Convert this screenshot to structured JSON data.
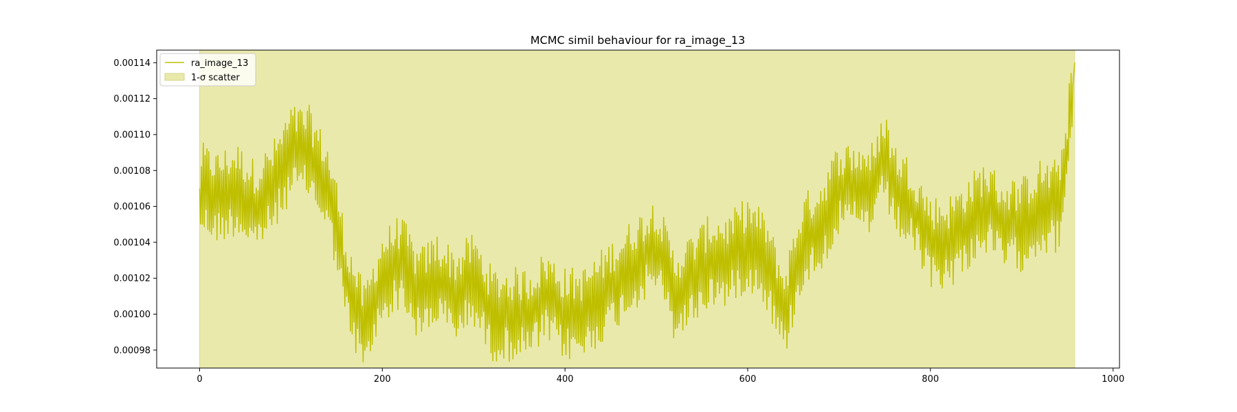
{
  "chart_data": {
    "type": "line",
    "title": "MCMC simil behaviour for ra_image_13",
    "xlabel": "",
    "ylabel": "",
    "xlim": [
      -47,
      1007
    ],
    "ylim": [
      0.00097,
      0.001147
    ],
    "x_ticks": [
      0,
      200,
      400,
      600,
      800,
      1000
    ],
    "x_tick_labels": [
      "0",
      "200",
      "400",
      "600",
      "800",
      "1000"
    ],
    "y_ticks": [
      0.00098,
      0.001,
      0.00102,
      0.00104,
      0.00106,
      0.00108,
      0.0011,
      0.00112,
      0.00114
    ],
    "y_tick_labels": [
      "0.00098",
      "0.00100",
      "0.00102",
      "0.00104",
      "0.00106",
      "0.00108",
      "0.00110",
      "0.00112",
      "0.00114"
    ],
    "grid": false,
    "legend_position": "upper-left",
    "colors": {
      "line": "#bfbf00",
      "band": "#e9e9ab"
    },
    "series": [
      {
        "name": "ra_image_13",
        "kind": "line",
        "x": [
          0,
          20,
          40,
          60,
          80,
          100,
          120,
          140,
          150,
          160,
          180,
          200,
          220,
          240,
          260,
          280,
          300,
          320,
          340,
          360,
          380,
          400,
          420,
          440,
          460,
          480,
          500,
          520,
          540,
          560,
          580,
          600,
          620,
          640,
          660,
          680,
          700,
          720,
          740,
          750,
          760,
          780,
          800,
          820,
          840,
          860,
          880,
          900,
          920,
          940,
          950,
          958
        ],
        "y": [
          0.00107,
          0.001065,
          0.00107,
          0.00106,
          0.00107,
          0.00109,
          0.00109,
          0.00107,
          0.00105,
          0.00102,
          0.00099,
          0.00102,
          0.00103,
          0.00101,
          0.00102,
          0.00101,
          0.00102,
          0.001,
          0.001,
          0.001,
          0.00101,
          0.001,
          0.001,
          0.00101,
          0.00102,
          0.00103,
          0.00104,
          0.00101,
          0.00102,
          0.00103,
          0.00103,
          0.00104,
          0.00103,
          0.001,
          0.00104,
          0.00105,
          0.00107,
          0.00107,
          0.00107,
          0.00109,
          0.00107,
          0.00106,
          0.00104,
          0.00104,
          0.00105,
          0.00106,
          0.00105,
          0.00105,
          0.00106,
          0.00106,
          0.00109,
          0.00114
        ],
        "oscillation": 2.2e-05
      },
      {
        "name": "1-σ scatter",
        "kind": "band",
        "x_range": [
          0,
          958
        ],
        "y_range": [
          0.00097,
          0.001147
        ]
      }
    ]
  }
}
